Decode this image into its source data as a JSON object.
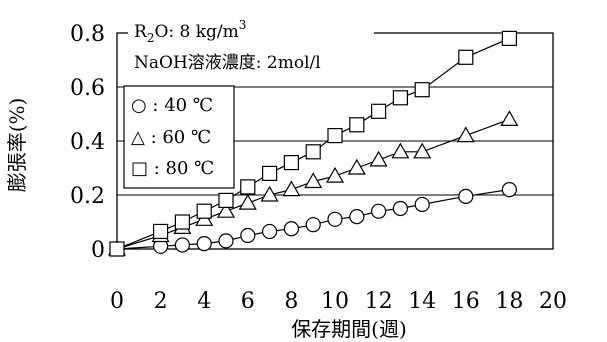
{
  "chart_data": {
    "type": "line",
    "xlabel": "保存期間(週)",
    "ylabel": "膨張率(%)",
    "xlim": [
      0,
      20
    ],
    "ylim": [
      0,
      0.8
    ],
    "xticks": [
      "0",
      "2",
      "4",
      "6",
      "8",
      "10",
      "12",
      "14",
      "16",
      "18",
      "20"
    ],
    "yticks": [
      "0",
      "0.2",
      "0.4",
      "0.6",
      "0.8"
    ],
    "grid": "horizontal",
    "annotations": {
      "line1_prefix": "R",
      "line1_sub": "2",
      "line1_mid": "O: 8 kg/m",
      "line1_sup": "3",
      "line2": "NaOH溶液濃度: 2mol/l"
    },
    "series": [
      {
        "name": "○ : 40 ℃",
        "marker": "circle",
        "x": [
          0,
          2,
          3,
          4,
          5,
          6,
          7,
          8,
          9,
          10,
          11,
          12,
          13,
          14,
          16,
          18
        ],
        "y": [
          0.0,
          0.01,
          0.015,
          0.02,
          0.03,
          0.05,
          0.065,
          0.075,
          0.09,
          0.11,
          0.12,
          0.14,
          0.15,
          0.165,
          0.195,
          0.22
        ]
      },
      {
        "name": "△ : 60 ℃",
        "marker": "triangle",
        "x": [
          0,
          2,
          3,
          4,
          5,
          6,
          7,
          8,
          9,
          10,
          11,
          12,
          13,
          14,
          16,
          18
        ],
        "y": [
          0.0,
          0.05,
          0.08,
          0.11,
          0.14,
          0.17,
          0.2,
          0.22,
          0.25,
          0.27,
          0.3,
          0.33,
          0.36,
          0.36,
          0.42,
          0.48
        ]
      },
      {
        "name": "□ : 80 ℃",
        "marker": "square",
        "x": [
          0,
          2,
          3,
          4,
          5,
          6,
          7,
          8,
          9,
          10,
          11,
          12,
          13,
          14,
          16,
          18
        ],
        "y": [
          0.0,
          0.065,
          0.1,
          0.14,
          0.18,
          0.23,
          0.28,
          0.32,
          0.36,
          0.42,
          0.46,
          0.51,
          0.56,
          0.59,
          0.71,
          0.78
        ]
      }
    ]
  }
}
